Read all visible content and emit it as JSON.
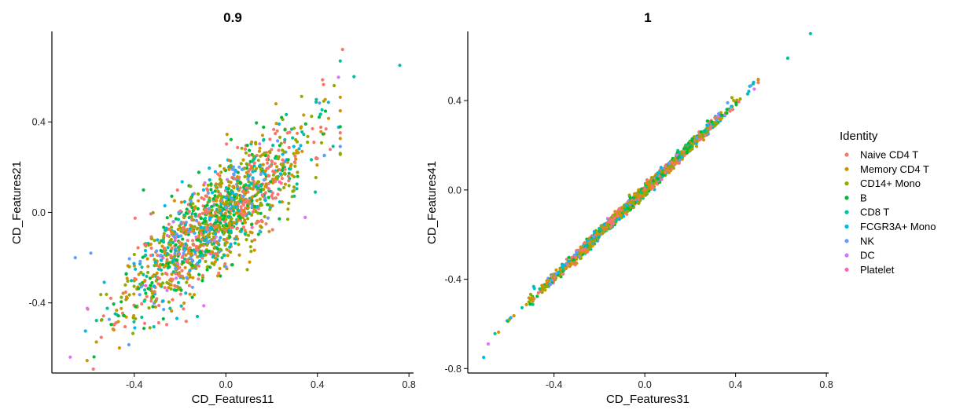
{
  "chart_data": [
    {
      "type": "scatter",
      "title": "0.9",
      "xlabel": "CD_Features11",
      "ylabel": "CD_Features21",
      "xticks": [
        "-0.4",
        "0.0",
        "0.4",
        "0.8"
      ],
      "yticks": [
        "-0.4",
        "0.0",
        "0.4"
      ],
      "xlim": [
        -0.76,
        0.82
      ],
      "ylim": [
        -0.71,
        0.8
      ],
      "grid": false,
      "correlation": 0.9,
      "slope": 0.87,
      "spread": 0.11,
      "points_per_series": 280,
      "seed": 11,
      "extremes": [
        {
          "series": "CD8 T",
          "x": 0.76,
          "y": 0.65
        },
        {
          "series": "Naive CD4 T",
          "x": 0.51,
          "y": 0.72
        },
        {
          "series": "CD8 T",
          "x": 0.56,
          "y": 0.6
        },
        {
          "series": "DC",
          "x": -0.68,
          "y": -0.64
        },
        {
          "series": "NK",
          "x": -0.59,
          "y": -0.18
        }
      ]
    },
    {
      "type": "scatter",
      "title": "1",
      "xlabel": "CD_Features31",
      "ylabel": "CD_Features41",
      "xticks": [
        "-0.4",
        "0.0",
        "0.4",
        "0.8"
      ],
      "yticks": [
        "-0.8",
        "-0.4",
        "0.0",
        "0.4"
      ],
      "xlim": [
        -0.78,
        0.81
      ],
      "ylim": [
        -0.82,
        0.71
      ],
      "grid": false,
      "correlation": 1,
      "slope": 0.98,
      "spread": 0.012,
      "points_per_series": 280,
      "seed": 31,
      "extremes": [
        {
          "series": "CD8 T",
          "x": 0.73,
          "y": 0.7
        },
        {
          "series": "CD8 T",
          "x": 0.63,
          "y": 0.59
        },
        {
          "series": "FCGR3A+ Mono",
          "x": -0.71,
          "y": -0.75
        },
        {
          "series": "DC",
          "x": -0.69,
          "y": -0.69
        }
      ]
    }
  ],
  "legend": {
    "title": "Identity",
    "placement": "right",
    "items": [
      {
        "name": "Naive CD4 T",
        "color": "#F8766D",
        "weight": 1.2
      },
      {
        "name": "Memory CD4 T",
        "color": "#D39200",
        "weight": 1.0
      },
      {
        "name": "CD14+ Mono",
        "color": "#93AA00",
        "weight": 1.1
      },
      {
        "name": "B",
        "color": "#00BA38",
        "weight": 0.8
      },
      {
        "name": "CD8 T",
        "color": "#00C19F",
        "weight": 0.6
      },
      {
        "name": "FCGR3A+ Mono",
        "color": "#00B9E3",
        "weight": 0.4
      },
      {
        "name": "NK",
        "color": "#619CFF",
        "weight": 0.35
      },
      {
        "name": "DC",
        "color": "#DB72FB",
        "weight": 0.08
      },
      {
        "name": "Platelet",
        "color": "#FF61C3",
        "weight": 0.04
      }
    ]
  }
}
